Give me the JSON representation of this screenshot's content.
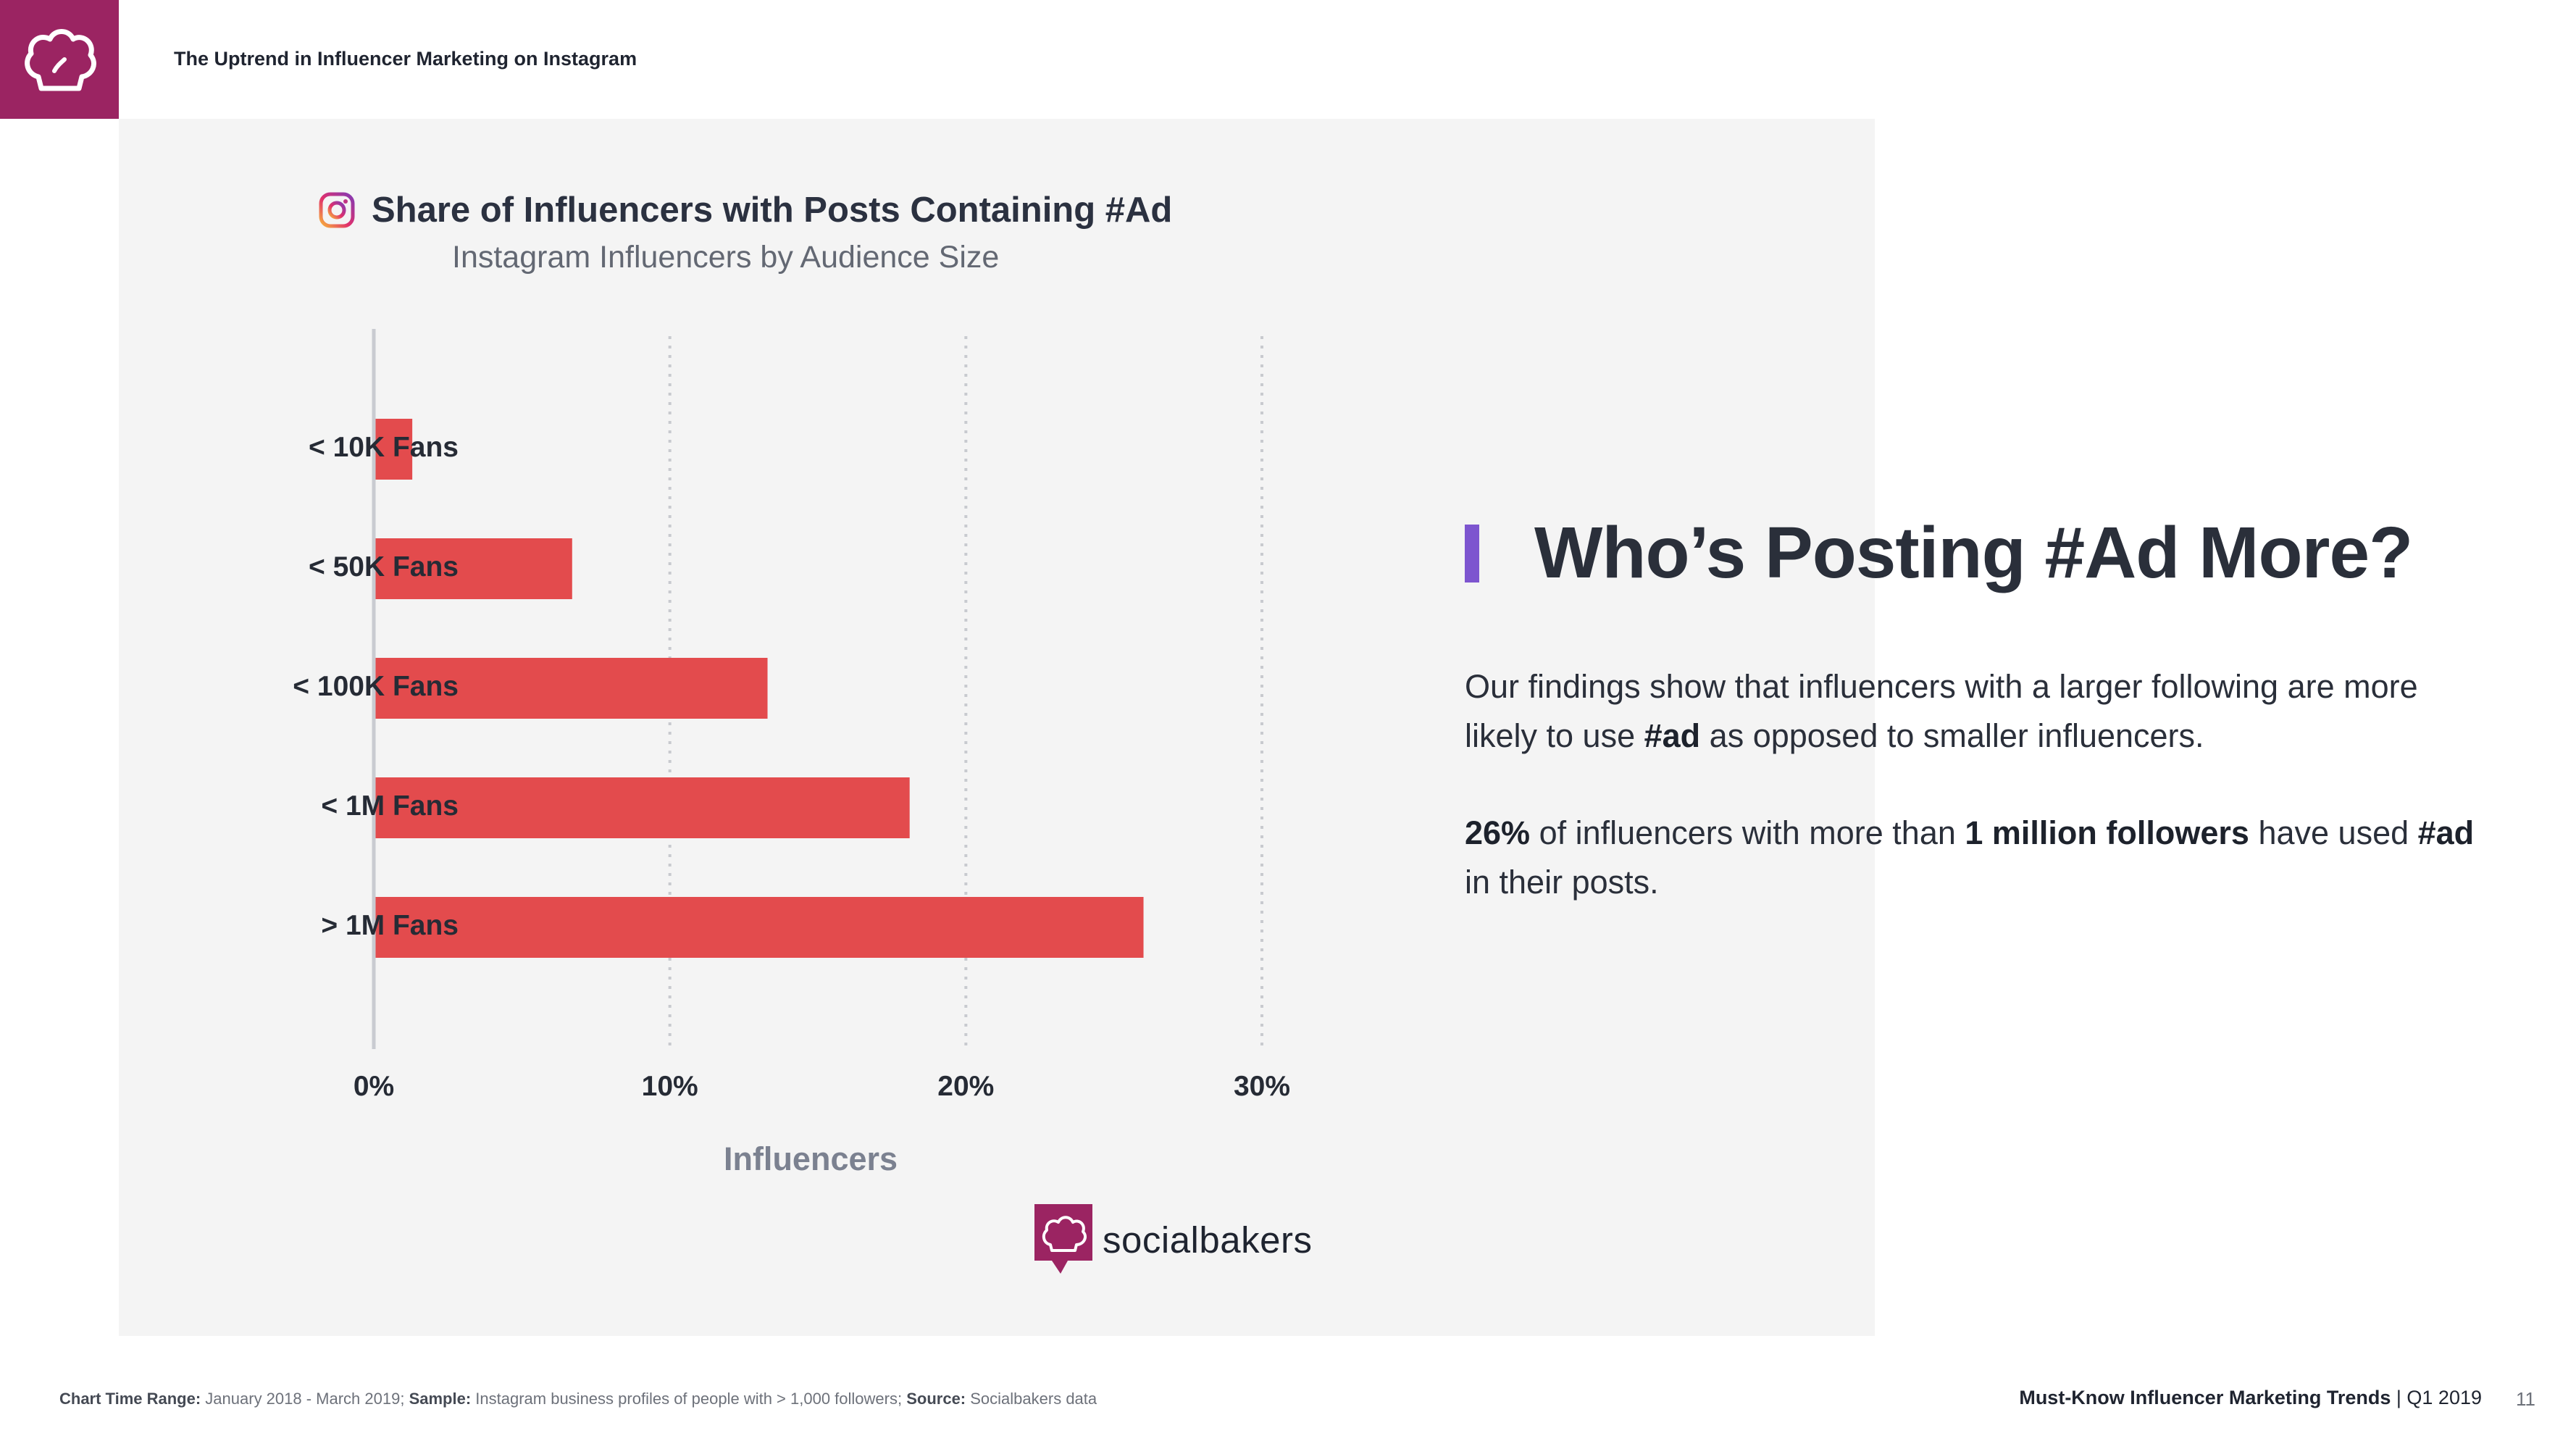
{
  "header": {
    "title": "The Uptrend in Influencer Marketing on Instagram"
  },
  "colors": {
    "brand": "#9b2462",
    "bar": "#e34b4d",
    "accent": "#7d55cf",
    "panel": "#f4f4f4"
  },
  "icons": {
    "logo": "chef-hat-icon",
    "instagram": "instagram-icon"
  },
  "chart_data": {
    "type": "bar",
    "orientation": "horizontal",
    "title": "Share of Influencers with Posts Containing #Ad",
    "subtitle": "Instagram Influencers by Audience Size",
    "categories": [
      "< 10K Fans",
      "< 50K Fans",
      "< 100K Fans",
      "< 1M Fans",
      "> 1M Fans"
    ],
    "values": [
      1.3,
      6.7,
      13.3,
      18.1,
      26
    ],
    "xlabel": "Influencers",
    "ylabel": "",
    "xlim": [
      0,
      30
    ],
    "xticks": [
      0,
      10,
      20,
      30
    ],
    "xtick_labels": [
      "0%",
      "10%",
      "20%",
      "30%"
    ],
    "grid": "vertical dotted"
  },
  "brand": {
    "name": "socialbakers"
  },
  "side": {
    "title": "Who’s Posting #Ad More?",
    "p1_a": "Our findings show that influencers with a larger following are more likely to use ",
    "p1_b": "#ad",
    "p1_c": " as opposed to smaller influencers.",
    "p2_a": "26%",
    "p2_b": " of influencers with more than ",
    "p2_c": "1 million followers",
    "p2_d": " have used ",
    "p2_e": "#ad",
    "p2_f": " in their posts."
  },
  "footer": {
    "range_label": "Chart Time Range:",
    "range_value": " January 2018 - March 2019; ",
    "sample_label": "Sample:",
    "sample_value": " Instagram business profiles of people with > 1,000 followers; ",
    "source_label": "Source:",
    "source_value": " Socialbakers data",
    "report_title": "Must-Know Influencer Marketing Trends",
    "report_period": " | Q1 2019",
    "page_number": "11"
  }
}
